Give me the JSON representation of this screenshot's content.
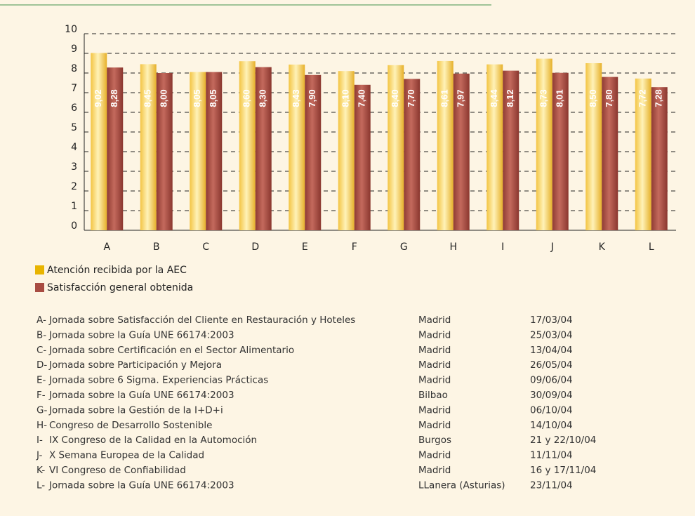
{
  "chart_data": {
    "type": "bar",
    "categories": [
      "A",
      "B",
      "C",
      "D",
      "E",
      "F",
      "G",
      "H",
      "I",
      "J",
      "K",
      "L"
    ],
    "series": [
      {
        "name": "Atención recibida por la AEC",
        "color": "#e8b400",
        "values": [
          9.02,
          8.45,
          8.05,
          8.6,
          8.43,
          8.1,
          8.4,
          8.61,
          8.44,
          8.73,
          8.5,
          7.72
        ],
        "value_labels": [
          "9,02",
          "8,45",
          "8,05",
          "8,60",
          "8,43",
          "8,10",
          "8,40",
          "8,61",
          "8,44",
          "8,73",
          "8,50",
          "7,72"
        ]
      },
      {
        "name": "Satisfacción general obtenida",
        "color": "#a84c42",
        "values": [
          8.28,
          8.0,
          8.05,
          8.3,
          7.9,
          7.4,
          7.7,
          7.97,
          8.12,
          8.01,
          7.8,
          7.28
        ],
        "value_labels": [
          "8,28",
          "8,00",
          "8,05",
          "8,30",
          "7,90",
          "7,40",
          "7,70",
          "7,97",
          "8,12",
          "8,01",
          "7,80",
          "7,28"
        ]
      }
    ],
    "ylim": [
      0,
      10
    ],
    "yticks": [
      0,
      1,
      2,
      3,
      4,
      5,
      6,
      7,
      8,
      9,
      10
    ],
    "grid": true
  },
  "table": {
    "rows": [
      [
        "A-",
        "Jornada sobre Satisfacción del Cliente en Restauración y Hoteles",
        "Madrid",
        "17/03/04"
      ],
      [
        "B-",
        "Jornada sobre la Guía UNE 66174:2003",
        "Madrid",
        "25/03/04"
      ],
      [
        "C-",
        "Jornada sobre Certificación en el Sector Alimentario",
        "Madrid",
        "13/04/04"
      ],
      [
        "D-",
        "Jornada sobre Participación y Mejora",
        "Madrid",
        "26/05/04"
      ],
      [
        "E-",
        "Jornada sobre 6 Sigma. Experiencias Prácticas",
        "Madrid",
        "09/06/04"
      ],
      [
        "F-",
        "Jornada sobre la Guía UNE 66174:2003",
        "Bilbao",
        "30/09/04"
      ],
      [
        "G-",
        "Jornada sobre la Gestión de la I+D+i",
        "Madrid",
        "06/10/04"
      ],
      [
        "H-",
        "Congreso de Desarrollo Sostenible",
        "Madrid",
        "14/10/04"
      ],
      [
        "I-",
        "IX Congreso de la Calidad en la Automoción",
        "Burgos",
        "21 y 22/10/04"
      ],
      [
        "J-",
        "X Semana Europea de la Calidad",
        "Madrid",
        "11/11/04"
      ],
      [
        "K-",
        "VI Congreso de Confiabilidad",
        "Madrid",
        "16 y 17/11/04"
      ],
      [
        "L-",
        "Jornada sobre la Guía UNE 66174:2003",
        "LLanera (Asturias)",
        "23/11/04"
      ]
    ]
  }
}
